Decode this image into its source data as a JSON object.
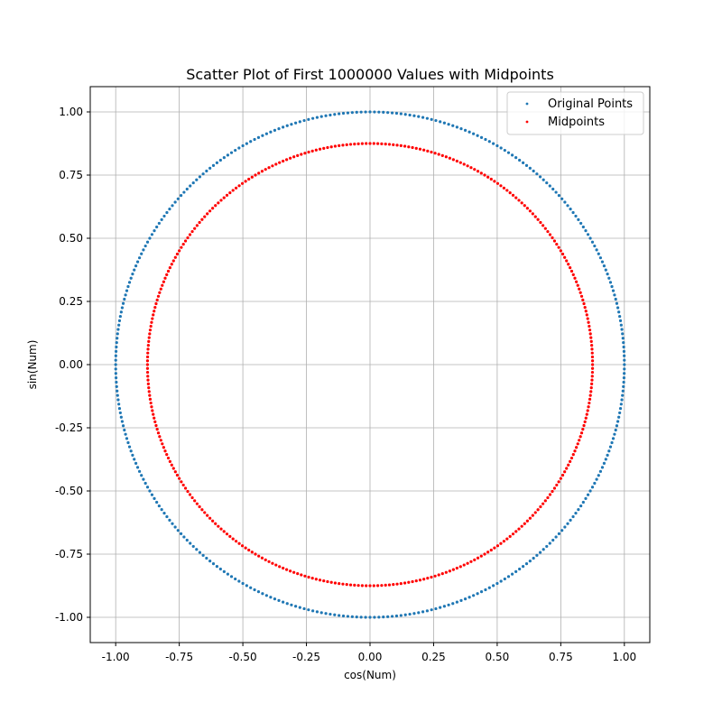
{
  "chart_data": {
    "type": "scatter",
    "title": "Scatter Plot of First 1000000 Values with Midpoints",
    "xlabel": "cos(Num)",
    "ylabel": "sin(Num)",
    "xlim": [
      -1.1,
      1.1
    ],
    "ylim": [
      -1.1,
      1.1
    ],
    "xticks": [
      "-1.00",
      "-0.75",
      "-0.50",
      "-0.25",
      "0.00",
      "0.25",
      "0.50",
      "0.75",
      "1.00"
    ],
    "yticks": [
      "-1.00",
      "-0.75",
      "-0.50",
      "-0.25",
      "0.00",
      "0.25",
      "0.50",
      "0.75",
      "1.00"
    ],
    "xtick_values": [
      -1.0,
      -0.75,
      -0.5,
      -0.25,
      0.0,
      0.25,
      0.5,
      0.75,
      1.0
    ],
    "ytick_values": [
      -1.0,
      -0.75,
      -0.5,
      -0.25,
      0.0,
      0.25,
      0.5,
      0.75,
      1.0
    ],
    "grid": true,
    "legend_position": "top-right",
    "series": [
      {
        "name": "Original Points",
        "color": "#1f77b4",
        "shape": "circle",
        "radius": 1.0,
        "angle_step_deg": 1
      },
      {
        "name": "Midpoints",
        "color": "#ff0000",
        "shape": "circle",
        "radius": 0.875,
        "angle_step_deg": 1
      }
    ]
  }
}
